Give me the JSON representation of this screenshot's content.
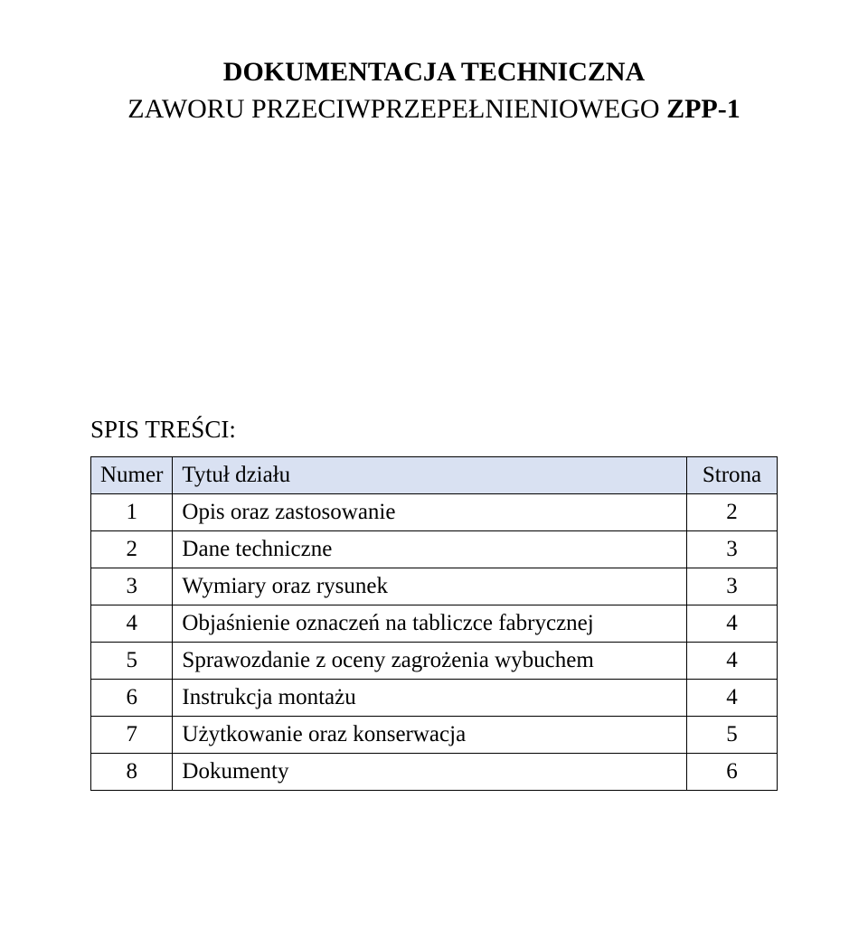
{
  "document": {
    "title_line1": "DOKUMENTACJA TECHNICZNA",
    "subtitle_prefix_smallcaps": "Z",
    "subtitle_rest": "AWORU PRZECIWPRZEPEŁNIENIOWEGO ",
    "subtitle_bold": "ZPP-1"
  },
  "toc": {
    "label_prefix_smallcaps": "S",
    "label_rest": "PIS TREŚCI",
    "label_suffix": ":",
    "header": {
      "col_num": "Numer",
      "col_title": "Tytuł działu",
      "col_page": "Strona"
    },
    "header_bg": "#d9e1f2",
    "border_color": "#000000",
    "rows": [
      {
        "num": "1",
        "title": "Opis oraz zastosowanie",
        "page": "2"
      },
      {
        "num": "2",
        "title": "Dane techniczne",
        "page": "3"
      },
      {
        "num": "3",
        "title": "Wymiary oraz rysunek",
        "page": "3"
      },
      {
        "num": "4",
        "title": "Objaśnienie oznaczeń na tabliczce fabrycznej",
        "page": "4"
      },
      {
        "num": "5",
        "title": "Sprawozdanie z oceny zagrożenia wybuchem",
        "page": "4"
      },
      {
        "num": "6",
        "title": "Instrukcja montażu",
        "page": "4"
      },
      {
        "num": "7",
        "title": "Użytkowanie oraz konserwacja",
        "page": "5"
      },
      {
        "num": "8",
        "title": "Dokumenty",
        "page": "6"
      }
    ]
  }
}
